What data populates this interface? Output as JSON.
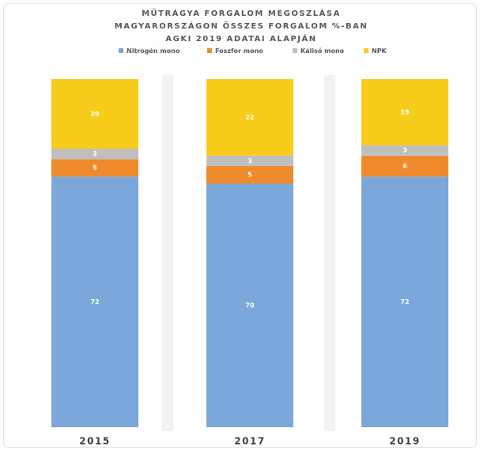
{
  "chart_data": {
    "type": "stacked_bar",
    "title": "MŰTRÁGYA FORGALOM MEGOSZLÁSA MAGYARORSZÁGON ÖSSZES FORGALOM %-BAN AGKI 2019 ADATAI ALAPJÁN",
    "categories": [
      "2015",
      "2017",
      "2019"
    ],
    "series": [
      {
        "name": "Nitrogén mono",
        "color": "#7ba7db",
        "values": [
          72,
          70,
          72
        ]
      },
      {
        "name": "Foszfor mono",
        "color": "#ef8a2c",
        "values": [
          5,
          5,
          6
        ]
      },
      {
        "name": "Kálisó mono",
        "color": "#bfbfbf",
        "values": [
          3,
          3,
          3
        ]
      },
      {
        "name": "NPK",
        "color": "#f8cc1b",
        "values": [
          20,
          22,
          19
        ]
      }
    ]
  }
}
